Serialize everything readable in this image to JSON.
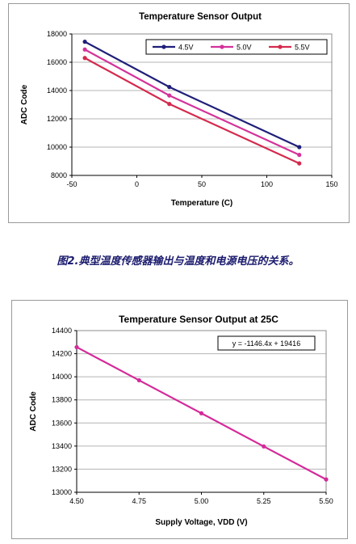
{
  "caption": "图2.典型温度传感器输出与温度和电源电压的关系。",
  "chart_data": [
    {
      "type": "line",
      "title": "Temperature Sensor Output",
      "xlabel": "Temperature (C)",
      "ylabel": "ADC Code",
      "xlim": [
        -50,
        150
      ],
      "ylim": [
        8000,
        18000
      ],
      "xticks": [
        -50,
        0,
        50,
        100,
        150
      ],
      "yticks": [
        8000,
        10000,
        12000,
        14000,
        16000,
        18000
      ],
      "grid": "horizontal",
      "legend": "top-right",
      "x": [
        -40,
        25,
        125
      ],
      "series": [
        {
          "name": "4.5V",
          "color": "#1f1f7a",
          "values": [
            17450,
            14250,
            10000
          ]
        },
        {
          "name": "5.0V",
          "color": "#d4329a",
          "values": [
            16900,
            13650,
            9450
          ]
        },
        {
          "name": "5.5V",
          "color": "#d42a4e",
          "values": [
            16300,
            13050,
            8850
          ]
        }
      ]
    },
    {
      "type": "line",
      "title": "Temperature Sensor Output at 25C",
      "xlabel": "Supply Voltage, VDD (V)",
      "ylabel": "ADC Code",
      "xlim": [
        4.5,
        5.5
      ],
      "ylim": [
        13000,
        14400
      ],
      "xticks": [
        "4.50",
        "4.75",
        "5.00",
        "5.25",
        "5.50"
      ],
      "yticks": [
        13000,
        13200,
        13400,
        13600,
        13800,
        14000,
        14200,
        14400
      ],
      "grid": "horizontal",
      "annotation": "y = -1146.4x + 19416",
      "x": [
        4.5,
        4.75,
        5.0,
        5.25,
        5.5
      ],
      "series": [
        {
          "color": "#d42a9a",
          "values": [
            14257,
            13970,
            13684,
            13397,
            13111
          ]
        }
      ]
    }
  ]
}
